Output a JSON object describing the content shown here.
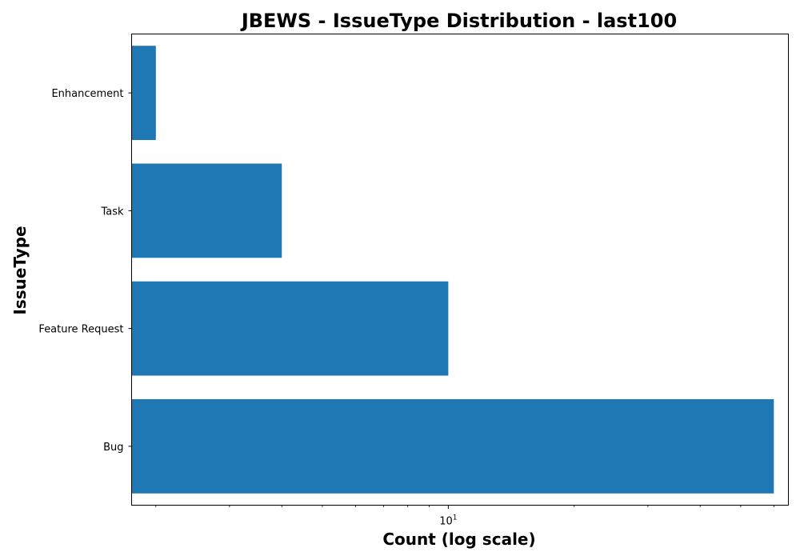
{
  "chart_data": {
    "type": "bar",
    "orientation": "horizontal",
    "title": "JBEWS - IssueType Distribution - last100",
    "xlabel": "Count (log scale)",
    "ylabel": "IssueType",
    "xscale": "log",
    "xlim": [
      1.75,
      65
    ],
    "x_major_tick": {
      "value": 10,
      "base": "10",
      "exponent": "1"
    },
    "x_minor_ticks": [
      2,
      3,
      4,
      5,
      6,
      7,
      8,
      9,
      20,
      30,
      40,
      50,
      60
    ],
    "categories": [
      "Bug",
      "Feature Request",
      "Task",
      "Enhancement"
    ],
    "values": [
      60,
      10,
      4,
      2
    ],
    "bar_color": "#1f77b4",
    "grid": false,
    "legend": "none"
  }
}
